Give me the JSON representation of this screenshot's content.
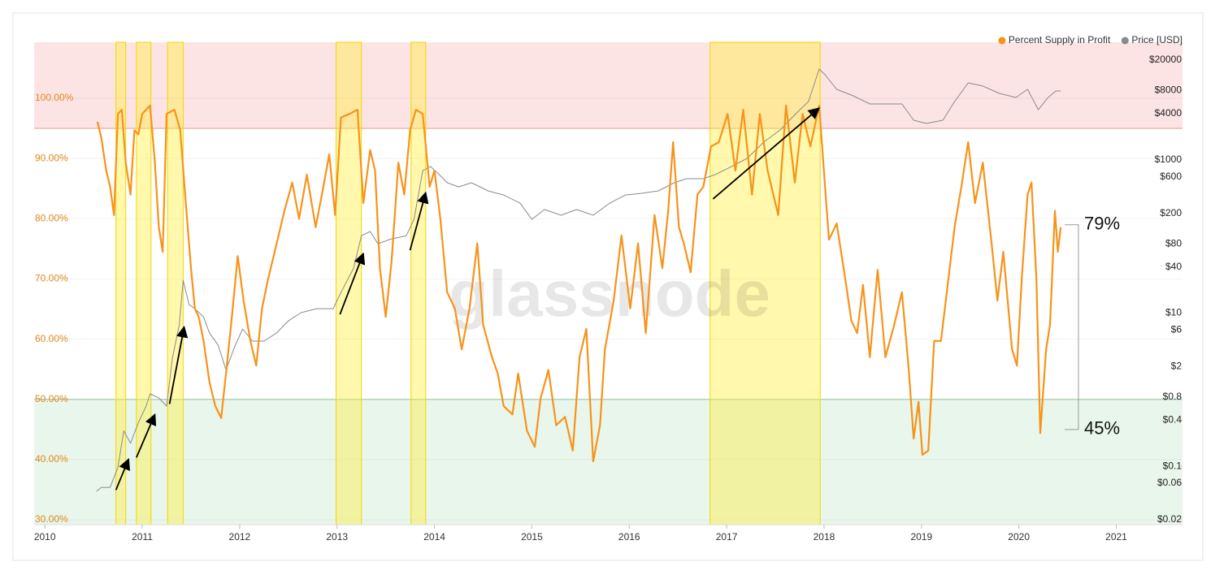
{
  "chart_data": {
    "type": "line",
    "watermark": "glassnode",
    "xlim": [
      2009.89,
      2021.68
    ],
    "xticks": [
      2010,
      2011,
      2012,
      2013,
      2014,
      2015,
      2016,
      2017,
      2018,
      2019,
      2020,
      2021
    ],
    "ylim": [
      29.2,
      109.3
    ],
    "yticks": [
      {
        "value": 30,
        "label": "30.00%"
      },
      {
        "value": 40,
        "label": "40.00%"
      },
      {
        "value": 50,
        "label": "50.00%"
      },
      {
        "value": 60,
        "label": "60.00%"
      },
      {
        "value": 70,
        "label": "70.00%"
      },
      {
        "value": 80,
        "label": "80.00%"
      },
      {
        "value": 90,
        "label": "90.00%"
      },
      {
        "value": 100,
        "label": "100.00%"
      }
    ],
    "y2lim": [
      0.0173,
      34200
    ],
    "y2_log": true,
    "y2ticks": [
      {
        "value": 20000,
        "label": "$20000"
      },
      {
        "value": 8000,
        "label": "$8000"
      },
      {
        "value": 4000,
        "label": "$4000"
      },
      {
        "value": 1000,
        "label": "$1000"
      },
      {
        "value": 600,
        "label": "$600"
      },
      {
        "value": 200,
        "label": "$200"
      },
      {
        "value": 80,
        "label": "$80"
      },
      {
        "value": 40,
        "label": "$40"
      },
      {
        "value": 10,
        "label": "$10"
      },
      {
        "value": 6,
        "label": "$6"
      },
      {
        "value": 2,
        "label": "$2"
      },
      {
        "value": 0.8,
        "label": "$0.8"
      },
      {
        "value": 0.4,
        "label": "$0.4"
      },
      {
        "value": 0.1,
        "label": "$0.1"
      },
      {
        "value": 0.06,
        "label": "$0.06"
      },
      {
        "value": 0.02,
        "label": "$0.02"
      }
    ],
    "grid": true,
    "legend": "top-right",
    "upper_zone": 95,
    "lower_zone": 50,
    "highlights": [
      [
        2010.73,
        2010.83
      ],
      [
        2010.94,
        2011.09
      ],
      [
        2011.26,
        2011.42
      ],
      [
        2012.99,
        2013.25
      ],
      [
        2013.76,
        2013.91
      ],
      [
        2016.83,
        2017.96
      ]
    ],
    "arrows": [
      {
        "x": [
          2010.73,
          2010.86
        ],
        "y": [
          0.049,
          0.124
        ]
      },
      {
        "x": [
          2010.94,
          2011.13
        ],
        "y": [
          0.13,
          0.475
        ]
      },
      {
        "x": [
          2011.28,
          2011.43
        ],
        "y": [
          0.65,
          6.6
        ]
      },
      {
        "x": [
          2013.03,
          2013.27
        ],
        "y": [
          9.6,
          59.9
        ]
      },
      {
        "x": [
          2013.75,
          2013.91
        ],
        "y": [
          66,
          373
        ]
      },
      {
        "x": [
          2016.86,
          2017.95
        ],
        "y": [
          308,
          4730
        ]
      }
    ],
    "annotations": [
      {
        "text": "79%",
        "value": 79
      },
      {
        "text": "45%",
        "value": 45
      }
    ],
    "series": [
      {
        "name": "Percent Supply in Profit",
        "color": "#f7931a",
        "x": [
          2010.54,
          2010.58,
          2010.63,
          2010.67,
          2010.71,
          2010.75,
          2010.79,
          2010.83,
          2010.88,
          2010.92,
          2010.96,
          2011.0,
          2011.08,
          2011.13,
          2011.17,
          2011.21,
          2011.25,
          2011.33,
          2011.39,
          2011.44,
          2011.5,
          2011.54,
          2011.58,
          2011.63,
          2011.69,
          2011.75,
          2011.81,
          2011.86,
          2011.92,
          2011.98,
          2012.04,
          2012.11,
          2012.17,
          2012.23,
          2012.29,
          2012.38,
          2012.46,
          2012.54,
          2012.61,
          2012.69,
          2012.78,
          2012.86,
          2012.92,
          2012.98,
          2013.04,
          2013.13,
          2013.21,
          2013.27,
          2013.34,
          2013.39,
          2013.44,
          2013.5,
          2013.56,
          2013.63,
          2013.69,
          2013.75,
          2013.81,
          2013.88,
          2013.95,
          2014.0,
          2014.06,
          2014.13,
          2014.21,
          2014.28,
          2014.36,
          2014.44,
          2014.5,
          2014.59,
          2014.65,
          2014.71,
          2014.8,
          2014.86,
          2014.95,
          2015.03,
          2015.09,
          2015.17,
          2015.25,
          2015.34,
          2015.42,
          2015.49,
          2015.56,
          2015.63,
          2015.7,
          2015.75,
          2015.84,
          2015.92,
          2016.01,
          2016.09,
          2016.17,
          2016.26,
          2016.34,
          2016.4,
          2016.45,
          2016.51,
          2016.56,
          2016.63,
          2016.7,
          2016.76,
          2016.84,
          2016.92,
          2017.01,
          2017.09,
          2017.17,
          2017.26,
          2017.34,
          2017.42,
          2017.53,
          2017.61,
          2017.7,
          2017.78,
          2017.86,
          2017.95,
          2018.01,
          2018.05,
          2018.13,
          2018.22,
          2018.28,
          2018.34,
          2018.4,
          2018.47,
          2018.55,
          2018.63,
          2018.72,
          2018.8,
          2018.87,
          2018.92,
          2018.97,
          2019.01,
          2019.07,
          2019.13,
          2019.2,
          2019.26,
          2019.34,
          2019.41,
          2019.48,
          2019.55,
          2019.63,
          2019.72,
          2019.78,
          2019.84,
          2019.93,
          2019.98,
          2020.03,
          2020.09,
          2020.13,
          2020.18,
          2020.22,
          2020.28,
          2020.32,
          2020.37,
          2020.4,
          2020.43
        ],
        "values": [
          96.1,
          93.4,
          88.0,
          85.3,
          80.6,
          97.4,
          98.1,
          89.3,
          84.0,
          94.7,
          94.0,
          97.4,
          98.8,
          89.3,
          78.6,
          74.5,
          97.4,
          98.1,
          94.7,
          84.0,
          71.8,
          65.1,
          63.7,
          59.7,
          52.9,
          48.9,
          46.9,
          54.3,
          63.7,
          73.8,
          66.4,
          59.7,
          55.6,
          65.1,
          69.8,
          75.9,
          81.3,
          86.0,
          80.0,
          87.3,
          78.6,
          85.3,
          90.7,
          80.6,
          96.8,
          97.4,
          98.1,
          82.6,
          91.4,
          88.0,
          71.8,
          63.7,
          72.9,
          89.3,
          84.0,
          94.7,
          98.1,
          97.4,
          85.3,
          88.0,
          80.0,
          67.8,
          65.1,
          58.3,
          65.1,
          75.9,
          62.4,
          57.0,
          54.3,
          48.9,
          47.5,
          54.3,
          44.8,
          42.1,
          50.2,
          54.9,
          45.7,
          47.1,
          41.5,
          57.0,
          61.7,
          39.7,
          45.7,
          58.3,
          66.4,
          77.2,
          65.1,
          75.9,
          61.0,
          80.6,
          71.8,
          81.3,
          92.7,
          78.6,
          75.9,
          71.1,
          84.0,
          85.3,
          92.0,
          92.7,
          97.4,
          88.0,
          98.1,
          84.0,
          97.4,
          88.0,
          80.6,
          98.8,
          86.0,
          97.4,
          92.0,
          98.8,
          85.3,
          76.5,
          79.2,
          69.8,
          63.1,
          61.0,
          69.0,
          57.0,
          71.5,
          57.0,
          62.4,
          67.8,
          54.9,
          43.5,
          49.6,
          40.8,
          41.5,
          59.7,
          59.7,
          67.8,
          78.6,
          85.3,
          92.7,
          82.6,
          89.3,
          75.9,
          66.4,
          74.5,
          58.3,
          55.6,
          70.2,
          84.0,
          86.0,
          70.2,
          44.4,
          58.3,
          62.4,
          81.3,
          74.5,
          78.6
        ]
      },
      {
        "name": "Price [USD]",
        "color": "#8a8a8a",
        "axis": "y2",
        "x": [
          2010.53,
          2010.58,
          2010.67,
          2010.75,
          2010.81,
          2010.88,
          2010.96,
          2011.04,
          2011.08,
          2011.17,
          2011.25,
          2011.31,
          2011.38,
          2011.42,
          2011.48,
          2011.54,
          2011.63,
          2011.69,
          2011.78,
          2011.86,
          2011.94,
          2012.03,
          2012.13,
          2012.25,
          2012.38,
          2012.5,
          2012.63,
          2012.79,
          2012.96,
          2013.04,
          2013.17,
          2013.25,
          2013.34,
          2013.42,
          2013.54,
          2013.71,
          2013.79,
          2013.88,
          2013.96,
          2014.05,
          2014.13,
          2014.25,
          2014.38,
          2014.55,
          2014.71,
          2014.88,
          2015.0,
          2015.13,
          2015.3,
          2015.46,
          2015.63,
          2015.8,
          2015.96,
          2016.13,
          2016.3,
          2016.46,
          2016.59,
          2016.76,
          2016.88,
          2017.05,
          2017.21,
          2017.38,
          2017.55,
          2017.71,
          2017.84,
          2017.95,
          2018.01,
          2018.13,
          2018.3,
          2018.47,
          2018.63,
          2018.8,
          2018.92,
          2019.05,
          2019.22,
          2019.34,
          2019.48,
          2019.63,
          2019.8,
          2019.97,
          2020.09,
          2020.2,
          2020.3,
          2020.38,
          2020.43
        ],
        "values": [
          0.047,
          0.053,
          0.053,
          0.097,
          0.29,
          0.2,
          0.37,
          0.61,
          0.88,
          0.78,
          0.61,
          2.6,
          7.0,
          26.7,
          12.9,
          11.4,
          8.9,
          5.5,
          3.8,
          1.8,
          3.4,
          6.2,
          4.3,
          4.3,
          5.5,
          7.9,
          10.1,
          11.4,
          11.4,
          18.5,
          38.6,
          102,
          116,
          80,
          91,
          102,
          167,
          722,
          816,
          639,
          501,
          443,
          501,
          393,
          347,
          272,
          167,
          224,
          189,
          224,
          189,
          272,
          347,
          365,
          393,
          501,
          567,
          567,
          639,
          816,
          1042,
          1698,
          2448,
          3992,
          5755,
          15280,
          12890,
          8299,
          6826,
          5348,
          5348,
          5348,
          3284,
          2981,
          3284,
          5755,
          10100,
          9170,
          7350,
          6510,
          8299,
          4500,
          6510,
          7900,
          7900
        ]
      }
    ]
  }
}
